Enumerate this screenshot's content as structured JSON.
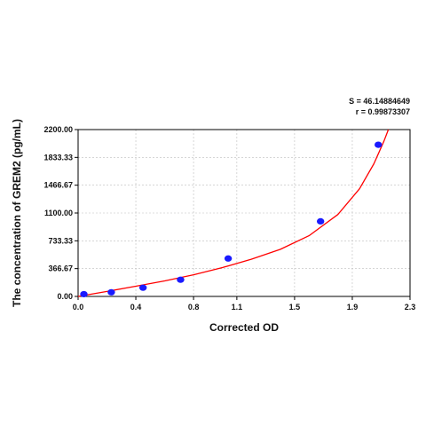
{
  "chart_data": {
    "type": "scatter",
    "title": "",
    "xlabel": "Corrected OD",
    "ylabel": "The concentration of GREM2 (pg/mL)",
    "xlim": [
      0.0,
      2.3
    ],
    "ylim": [
      0.0,
      2200.0
    ],
    "x_ticks": [
      "0.0",
      "0.4",
      "0.8",
      "1.1",
      "1.5",
      "1.9",
      "2.3"
    ],
    "y_ticks": [
      "0.00",
      "366.67",
      "733.33",
      "1100.00",
      "1466.67",
      "1833.33",
      "2200.00"
    ],
    "grid": true,
    "stats": {
      "s_label": "S = 46.14884649",
      "r_label": "r = 0.99873307"
    },
    "series": [
      {
        "type": "scatter",
        "color": "#1a1aff",
        "points": [
          {
            "x": 0.04,
            "y": 30
          },
          {
            "x": 0.23,
            "y": 55
          },
          {
            "x": 0.45,
            "y": 115
          },
          {
            "x": 0.71,
            "y": 220
          },
          {
            "x": 1.04,
            "y": 500
          },
          {
            "x": 1.68,
            "y": 990
          },
          {
            "x": 2.08,
            "y": 2000
          }
        ]
      },
      {
        "type": "line",
        "color": "#ff0000",
        "points": [
          {
            "x": 0.0,
            "y": 0
          },
          {
            "x": 0.2,
            "y": 65
          },
          {
            "x": 0.4,
            "y": 135
          },
          {
            "x": 0.6,
            "y": 205
          },
          {
            "x": 0.8,
            "y": 285
          },
          {
            "x": 1.0,
            "y": 380
          },
          {
            "x": 1.2,
            "y": 490
          },
          {
            "x": 1.4,
            "y": 620
          },
          {
            "x": 1.6,
            "y": 800
          },
          {
            "x": 1.8,
            "y": 1080
          },
          {
            "x": 1.95,
            "y": 1420
          },
          {
            "x": 2.05,
            "y": 1750
          },
          {
            "x": 2.12,
            "y": 2050
          },
          {
            "x": 2.15,
            "y": 2200
          }
        ]
      }
    ]
  }
}
